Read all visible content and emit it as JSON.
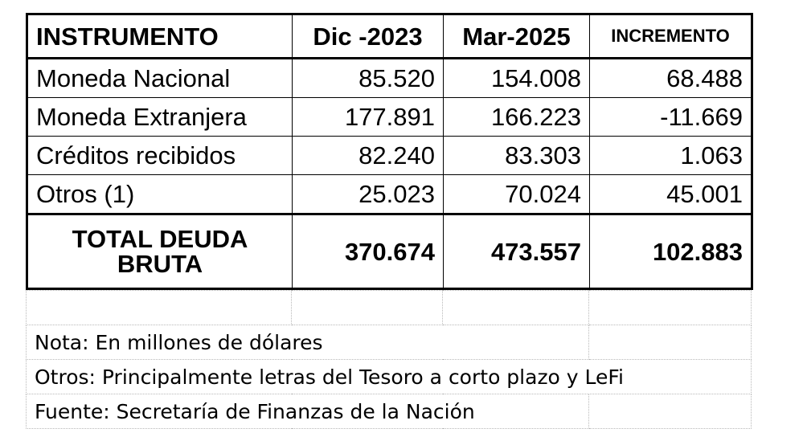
{
  "table": {
    "headers": [
      "INSTRUMENTO",
      "Dic -2023",
      "Mar-2025",
      "INCREMENTO"
    ],
    "rows": [
      {
        "label": "Moneda  Nacional",
        "dic2023": "85.520",
        "mar2025": "154.008",
        "incremento": "68.488"
      },
      {
        "label": "Moneda Extranjera",
        "dic2023": "177.891",
        "mar2025": "166.223",
        "incremento": "-11.669"
      },
      {
        "label": "Créditos recibidos",
        "dic2023": "82.240",
        "mar2025": "83.303",
        "incremento": "1.063"
      },
      {
        "label": "Otros (1)",
        "dic2023": "25.023",
        "mar2025": "70.024",
        "incremento": "45.001"
      }
    ],
    "total": {
      "label_line1": "TOTAL DEUDA",
      "label_line2": "BRUTA",
      "dic2023": "370.674",
      "mar2025": "473.557",
      "incremento": "102.883"
    }
  },
  "notes": {
    "nota": "Nota: En millones de dólares",
    "otros": "Otros: Principalmente letras del Tesoro a corto plazo y LeFi",
    "fuente": "Fuente:  Secretaría de Finanzas de la Nación"
  }
}
